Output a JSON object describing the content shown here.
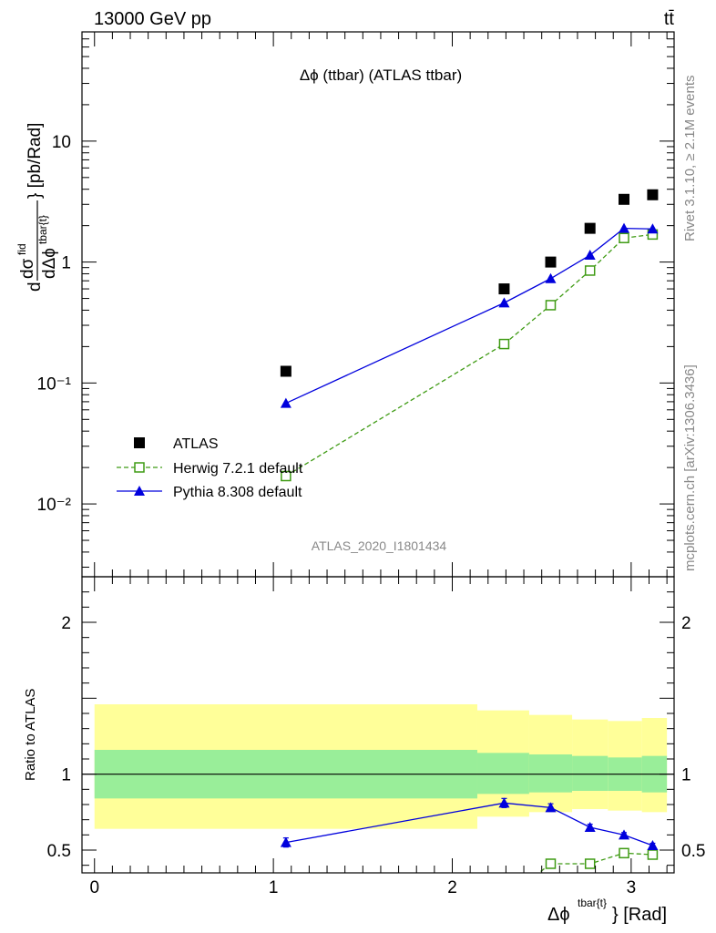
{
  "header": {
    "energy": "13000 GeV pp",
    "process": "tt̄"
  },
  "side": {
    "rivet": "Rivet 3.1.10, ≥ 2.1M events",
    "mcplots": "mcplots.cern.ch [arXiv:1306.3436]"
  },
  "analysis_id": "ATLAS_2020_I1801434",
  "chart_data": [
    {
      "type": "scatter",
      "title": "Δϕ (ttbar) (ATLAS ttbar)",
      "ylabel": "dσ^{fid}/dΔϕ^{tbar{t}} [pb/Rad]",
      "yscale": "log",
      "ylim": [
        0.0025,
        80
      ],
      "xlim": [
        -0.07,
        3.24
      ],
      "ytick_labels": [
        "10",
        "1",
        "10⁻¹",
        "10⁻²"
      ],
      "ytick_values": [
        10,
        1,
        0.1,
        0.01
      ],
      "legend": {
        "position": "bottom-left",
        "entries": [
          "ATLAS",
          "Herwig 7.2.1 default",
          "Pythia 8.308 default"
        ]
      },
      "series": [
        {
          "name": "ATLAS",
          "color": "#000000",
          "marker": "square",
          "x": [
            1.07,
            2.29,
            2.55,
            2.77,
            2.96,
            3.12
          ],
          "y": [
            0.125,
            0.6,
            1.0,
            1.9,
            3.3,
            3.6
          ]
        },
        {
          "name": "Herwig 7.2.1 default",
          "color": "#3f9b14",
          "marker": "open-square",
          "line": "dashed",
          "x": [
            1.07,
            2.29,
            2.55,
            2.77,
            2.96,
            3.12
          ],
          "y": [
            0.017,
            0.21,
            0.44,
            0.85,
            1.58,
            1.69
          ]
        },
        {
          "name": "Pythia 8.308 default",
          "color": "#0000dd",
          "marker": "triangle",
          "line": "solid",
          "x": [
            1.07,
            2.29,
            2.55,
            2.77,
            2.96,
            3.12
          ],
          "y": [
            0.068,
            0.46,
            0.73,
            1.14,
            1.9,
            1.88
          ]
        }
      ]
    },
    {
      "type": "line",
      "ylabel": "Ratio to ATLAS",
      "xlabel": "Δϕ^{tbar{t}} [Rad]",
      "xlim": [
        -0.07,
        3.24
      ],
      "ylim": [
        0.35,
        2.3
      ],
      "xtick_labels": [
        "0",
        "1",
        "2",
        "3"
      ],
      "xtick_values": [
        0,
        1,
        2,
        3
      ],
      "ytick_labels": [
        "2",
        "1",
        "0.5"
      ],
      "ytick_values": [
        2,
        1,
        0.5
      ],
      "bands": {
        "edges": [
          0,
          2.14,
          2.43,
          2.67,
          2.87,
          3.06,
          3.2
        ],
        "stat_low": [
          0.84,
          0.87,
          0.88,
          0.89,
          0.89,
          0.88
        ],
        "stat_high": [
          1.16,
          1.14,
          1.13,
          1.12,
          1.11,
          1.12
        ],
        "total_low": [
          0.64,
          0.72,
          0.75,
          0.77,
          0.76,
          0.75
        ],
        "total_high": [
          1.46,
          1.42,
          1.39,
          1.36,
          1.35,
          1.37
        ],
        "stat_color": "#99ee99",
        "total_color": "#ffff99"
      },
      "series": [
        {
          "name": "Herwig 7.2.1 default",
          "color": "#3f9b14",
          "marker": "open-square",
          "line": "dashed",
          "x": [
            2.55,
            2.77,
            2.96,
            3.12
          ],
          "y": [
            0.41,
            0.41,
            0.48,
            0.47
          ],
          "x_before": 2.43,
          "y_before": 0.3
        },
        {
          "name": "Pythia 8.308 default",
          "color": "#0000dd",
          "marker": "triangle",
          "line": "solid",
          "x": [
            1.07,
            2.29,
            2.55,
            2.77,
            2.96,
            3.12
          ],
          "y": [
            0.55,
            0.81,
            0.78,
            0.65,
            0.6,
            0.53
          ],
          "yerr": [
            0.03,
            0.03,
            0.025,
            0.02,
            0.015,
            0.015
          ]
        }
      ]
    }
  ]
}
